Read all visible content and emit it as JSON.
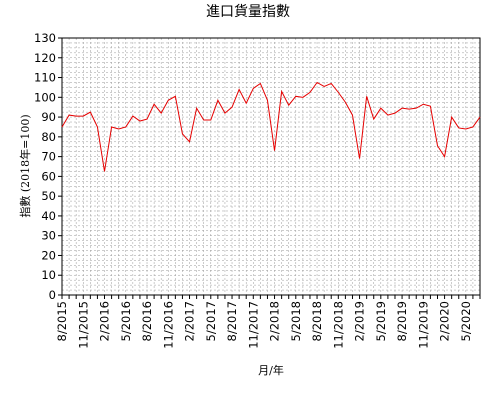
{
  "chart_data": {
    "type": "line",
    "title": "進口貨量指數",
    "xlabel": "月/年",
    "ylabel": "指數 (2018年=100)",
    "ylim": [
      0,
      130
    ],
    "yticks": [
      0,
      10,
      20,
      30,
      40,
      50,
      60,
      70,
      80,
      90,
      100,
      110,
      120,
      130
    ],
    "grid": true,
    "x_tick_labels": [
      "8/2015",
      "11/2015",
      "2/2016",
      "5/2016",
      "8/2016",
      "11/2016",
      "2/2017",
      "5/2017",
      "8/2017",
      "11/2017",
      "2/2018",
      "5/2018",
      "8/2018",
      "11/2018",
      "2/2019",
      "5/2019",
      "8/2019",
      "11/2019",
      "2/2020",
      "5/2020"
    ],
    "series": [
      {
        "color": "#e60000",
        "x": [
          "8/2015",
          "9/2015",
          "10/2015",
          "11/2015",
          "12/2015",
          "1/2016",
          "2/2016",
          "3/2016",
          "4/2016",
          "5/2016",
          "6/2016",
          "7/2016",
          "8/2016",
          "9/2016",
          "10/2016",
          "11/2016",
          "12/2016",
          "1/2017",
          "2/2017",
          "3/2017",
          "4/2017",
          "5/2017",
          "6/2017",
          "7/2017",
          "8/2017",
          "9/2017",
          "10/2017",
          "11/2017",
          "12/2017",
          "1/2018",
          "2/2018",
          "3/2018",
          "4/2018",
          "5/2018",
          "6/2018",
          "7/2018",
          "8/2018",
          "9/2018",
          "10/2018",
          "11/2018",
          "12/2018",
          "1/2019",
          "2/2019",
          "3/2019",
          "4/2019",
          "5/2019",
          "6/2019",
          "7/2019",
          "8/2019",
          "9/2019",
          "10/2019",
          "11/2019",
          "12/2019",
          "1/2020",
          "2/2020",
          "3/2020",
          "4/2020",
          "5/2020",
          "6/2020",
          "7/2020"
        ],
        "values": [
          85,
          91,
          90.5,
          90.5,
          92.5,
          85,
          62.5,
          85,
          84,
          85,
          90.5,
          88,
          89,
          96.5,
          92,
          98.5,
          100.5,
          81.5,
          77.5,
          94.5,
          88.5,
          88.5,
          98.5,
          92,
          95,
          104,
          97,
          104.5,
          107,
          98.5,
          73,
          103,
          96,
          100.5,
          100,
          102.5,
          107.5,
          105.5,
          107,
          102.5,
          97.5,
          91,
          69,
          100.5,
          89,
          94.5,
          91,
          92,
          94.5,
          94,
          94.5,
          96.5,
          95.5,
          75.5,
          70,
          90,
          84.5,
          84,
          85,
          90
        ]
      }
    ]
  }
}
